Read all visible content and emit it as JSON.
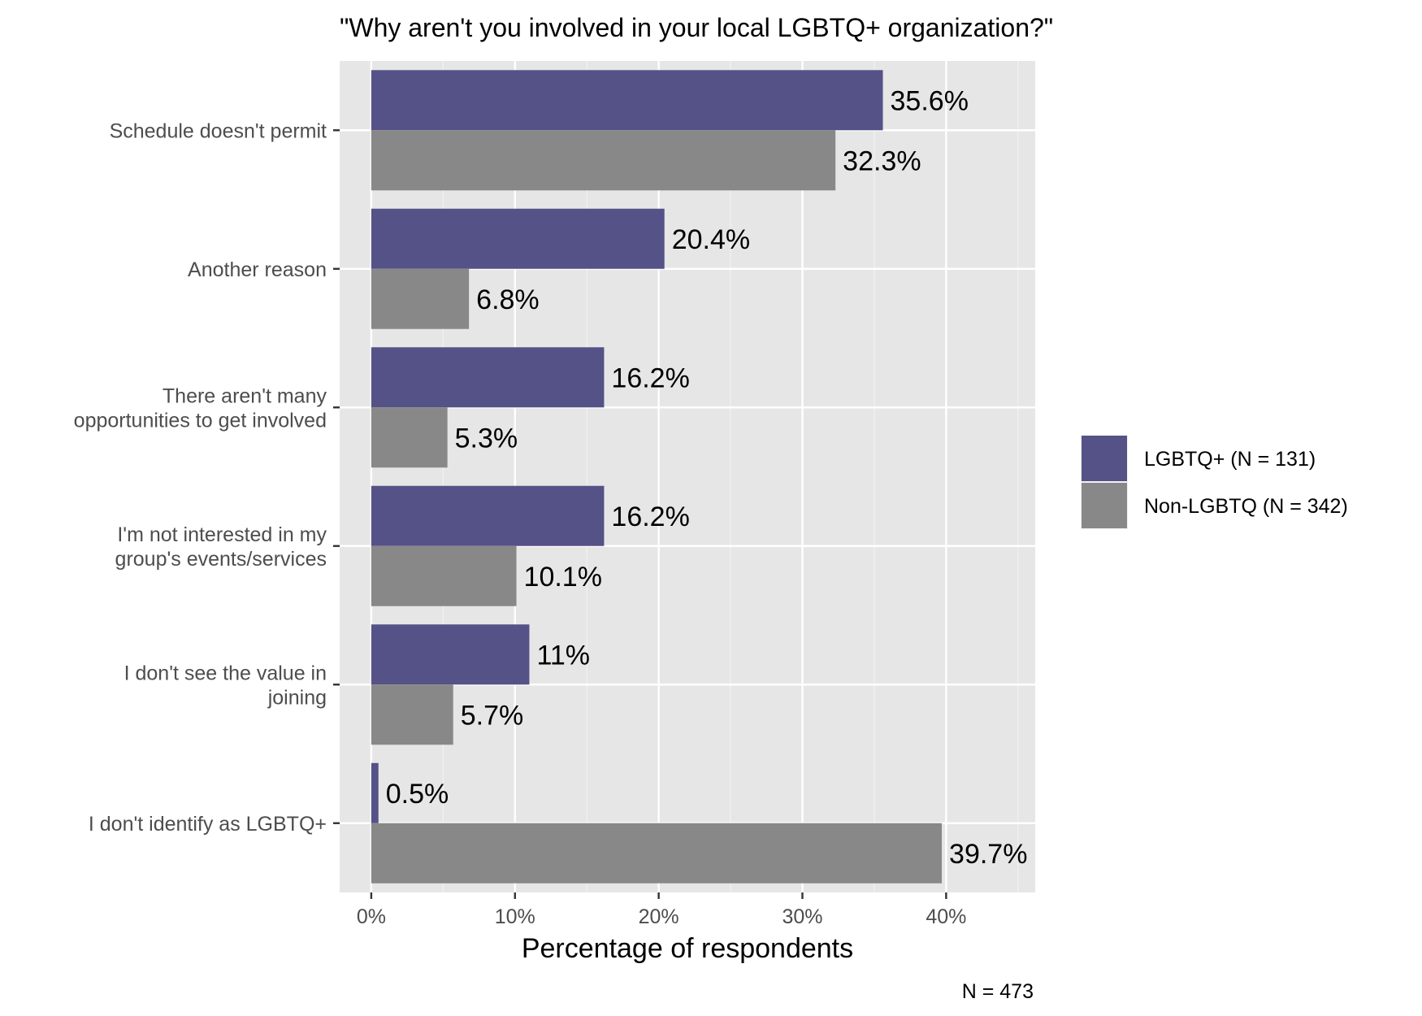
{
  "chart_data": {
    "type": "bar",
    "orientation": "horizontal",
    "title": "\"Why aren't you involved in your local LGBTQ+ organization?\"",
    "xlabel": "Percentage of respondents",
    "caption": "N = 473",
    "categories": [
      [
        "Schedule doesn't permit"
      ],
      [
        "Another reason"
      ],
      [
        "There aren't many",
        "opportunities to get involved"
      ],
      [
        "I'm not interested in my",
        "group's events/services"
      ],
      [
        "I don't see the value in",
        "joining"
      ],
      [
        "I don't identify as LGBTQ+"
      ]
    ],
    "series": [
      {
        "name": "LGBTQ+ (N = 131)",
        "color": "#555287",
        "values": [
          35.6,
          20.4,
          16.2,
          16.2,
          11,
          0.5
        ],
        "labels": [
          "35.6%",
          "20.4%",
          "16.2%",
          "16.2%",
          "11%",
          "0.5%"
        ]
      },
      {
        "name": "Non-LGBTQ (N = 342)",
        "color": "#888888",
        "values": [
          32.3,
          6.8,
          5.3,
          10.1,
          5.7,
          39.7
        ],
        "labels": [
          "32.3%",
          "6.8%",
          "5.3%",
          "10.1%",
          "5.7%",
          "39.7%"
        ]
      }
    ],
    "xticks": [
      0,
      10,
      20,
      30,
      40
    ],
    "xtick_labels": [
      "0%",
      "10%",
      "20%",
      "30%",
      "40%"
    ],
    "xlim": [
      -2.2,
      46.2
    ],
    "grid": true,
    "legend_position": "right",
    "panel_background": "#e6e6e6"
  }
}
